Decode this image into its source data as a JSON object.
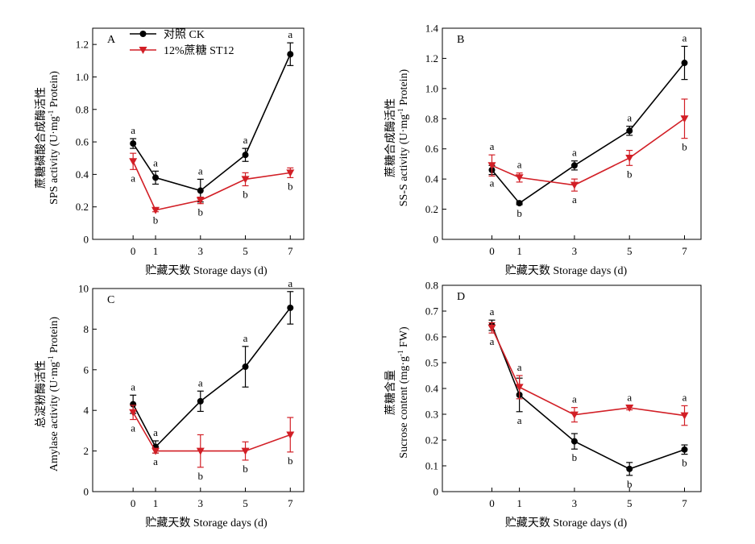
{
  "legend": {
    "ck_label": "对照 CK",
    "st_label": "12%蔗糖 ST12"
  },
  "colors": {
    "ck": "#000000",
    "st12": "#d21f26"
  },
  "chart_data": [
    {
      "type": "line",
      "panel_letter": "A",
      "ylabel_cn": "蔗糖磷酸合成酶活性",
      "ylabel_en": "SPS activity (U·mg-1 Protein)",
      "xlabel": "贮藏天数 Storage days (d)",
      "x": [
        0,
        1,
        3,
        5,
        7
      ],
      "xlim": [
        -1.8,
        7.6
      ],
      "ylim": [
        0,
        1.3
      ],
      "yticks": [
        0,
        0.2,
        0.4,
        0.6,
        0.8,
        1.0,
        1.2
      ],
      "ytick_labels": [
        "0",
        "0.2",
        "0.4",
        "0.6",
        "0.8",
        "1.0",
        "1.2"
      ],
      "series": [
        {
          "name": "对照 CK",
          "marker": "circle",
          "values": [
            0.59,
            0.38,
            0.3,
            0.52,
            1.14
          ],
          "errors": [
            0.03,
            0.04,
            0.07,
            0.04,
            0.07
          ],
          "letters": [
            "a",
            "a",
            "a",
            "a",
            "a"
          ],
          "letter_pos": [
            "above",
            "above",
            "above",
            "above",
            "above"
          ]
        },
        {
          "name": "12%蔗糖 ST12",
          "marker": "triangle-down",
          "values": [
            0.48,
            0.18,
            0.24,
            0.37,
            0.41
          ],
          "errors": [
            0.05,
            0.01,
            0.02,
            0.04,
            0.03
          ],
          "letters": [
            "a",
            "b",
            "b",
            "b",
            "b"
          ],
          "letter_pos": [
            "below",
            "below",
            "below",
            "below",
            "below"
          ]
        }
      ]
    },
    {
      "type": "line",
      "panel_letter": "B",
      "ylabel_cn": "蔗糖合成酶活性",
      "ylabel_en": "SS-S activity (U·mg-1 Protein)",
      "xlabel": "贮藏天数 Storage days (d)",
      "x": [
        0,
        1,
        3,
        5,
        7
      ],
      "xlim": [
        -1.8,
        7.6
      ],
      "ylim": [
        0,
        1.4
      ],
      "yticks": [
        0,
        0.2,
        0.4,
        0.6,
        0.8,
        1.0,
        1.2,
        1.4
      ],
      "ytick_labels": [
        "0",
        "0.2",
        "0.4",
        "0.6",
        "0.8",
        "1.0",
        "1.2",
        "1.4"
      ],
      "series": [
        {
          "name": "对照 CK",
          "marker": "circle",
          "values": [
            0.46,
            0.24,
            0.49,
            0.72,
            1.17
          ],
          "errors": [
            0.03,
            0.01,
            0.03,
            0.03,
            0.11
          ],
          "letters": [
            "a",
            "b",
            "a",
            "a",
            "a"
          ],
          "letter_pos": [
            "below",
            "below",
            "above",
            "above",
            "above"
          ]
        },
        {
          "name": "12%蔗糖 ST12",
          "marker": "triangle-down",
          "values": [
            0.49,
            0.41,
            0.36,
            0.54,
            0.8
          ],
          "errors": [
            0.07,
            0.03,
            0.04,
            0.05,
            0.13
          ],
          "letters": [
            "a",
            "a",
            "a",
            "b",
            "b"
          ],
          "letter_pos": [
            "above",
            "above",
            "below",
            "below",
            "below"
          ]
        }
      ]
    },
    {
      "type": "line",
      "panel_letter": "C",
      "ylabel_cn": "总淀粉酶活性",
      "ylabel_en": "Amylase activity (U·mg-1 Protein)",
      "xlabel": "贮藏天数 Storage days (d)",
      "x": [
        0,
        1,
        3,
        5,
        7
      ],
      "xlim": [
        -1.8,
        7.6
      ],
      "ylim": [
        0,
        10
      ],
      "yticks": [
        0,
        2,
        4,
        6,
        8,
        10
      ],
      "ytick_labels": [
        "0",
        "2",
        "4",
        "6",
        "8",
        "10"
      ],
      "series": [
        {
          "name": "对照 CK",
          "marker": "circle",
          "values": [
            4.3,
            2.2,
            4.45,
            6.15,
            9.05
          ],
          "errors": [
            0.45,
            0.3,
            0.5,
            1.0,
            0.8
          ],
          "letters": [
            "a",
            "a",
            "a",
            "a",
            "a"
          ],
          "letter_pos": [
            "above",
            "above",
            "above",
            "above",
            "above"
          ]
        },
        {
          "name": "12%蔗糖 ST12",
          "marker": "triangle-down",
          "values": [
            3.9,
            2.0,
            2.0,
            2.0,
            2.8
          ],
          "errors": [
            0.35,
            0.1,
            0.8,
            0.45,
            0.85
          ],
          "letters": [
            "a",
            "a",
            "b",
            "b",
            "b"
          ],
          "letter_pos": [
            "below",
            "below",
            "below",
            "below",
            "below"
          ]
        }
      ]
    },
    {
      "type": "line",
      "panel_letter": "D",
      "ylabel_cn": "蔗糖含量",
      "ylabel_en": "Sucrose content (mg·g-1 FW)",
      "xlabel": "贮藏天数 Storage days (d)",
      "x": [
        0,
        1,
        3,
        5,
        7
      ],
      "xlim": [
        -1.8,
        7.6
      ],
      "ylim": [
        0,
        0.8
      ],
      "yticks": [
        0,
        0.1,
        0.2,
        0.3,
        0.4,
        0.5,
        0.6,
        0.7,
        0.8
      ],
      "ytick_labels": [
        "0",
        "0.1",
        "0.2",
        "0.3",
        "0.4",
        "0.5",
        "0.6",
        "0.7",
        "0.8"
      ],
      "series": [
        {
          "name": "对照 CK",
          "marker": "circle",
          "values": [
            0.645,
            0.375,
            0.195,
            0.088,
            0.163
          ],
          "errors": [
            0.02,
            0.065,
            0.03,
            0.025,
            0.018
          ],
          "letters": [
            "a",
            "a",
            "b",
            "b",
            "b"
          ],
          "letter_pos": [
            "above",
            "below",
            "below",
            "below",
            "below"
          ]
        },
        {
          "name": "12%蔗糖 ST12",
          "marker": "triangle-down",
          "values": [
            0.635,
            0.405,
            0.298,
            0.325,
            0.295
          ],
          "errors": [
            0.02,
            0.045,
            0.028,
            0.008,
            0.038
          ],
          "letters": [
            "a",
            "a",
            "a",
            "a",
            "a"
          ],
          "letter_pos": [
            "below",
            "above",
            "above",
            "above",
            "above"
          ]
        }
      ]
    }
  ]
}
